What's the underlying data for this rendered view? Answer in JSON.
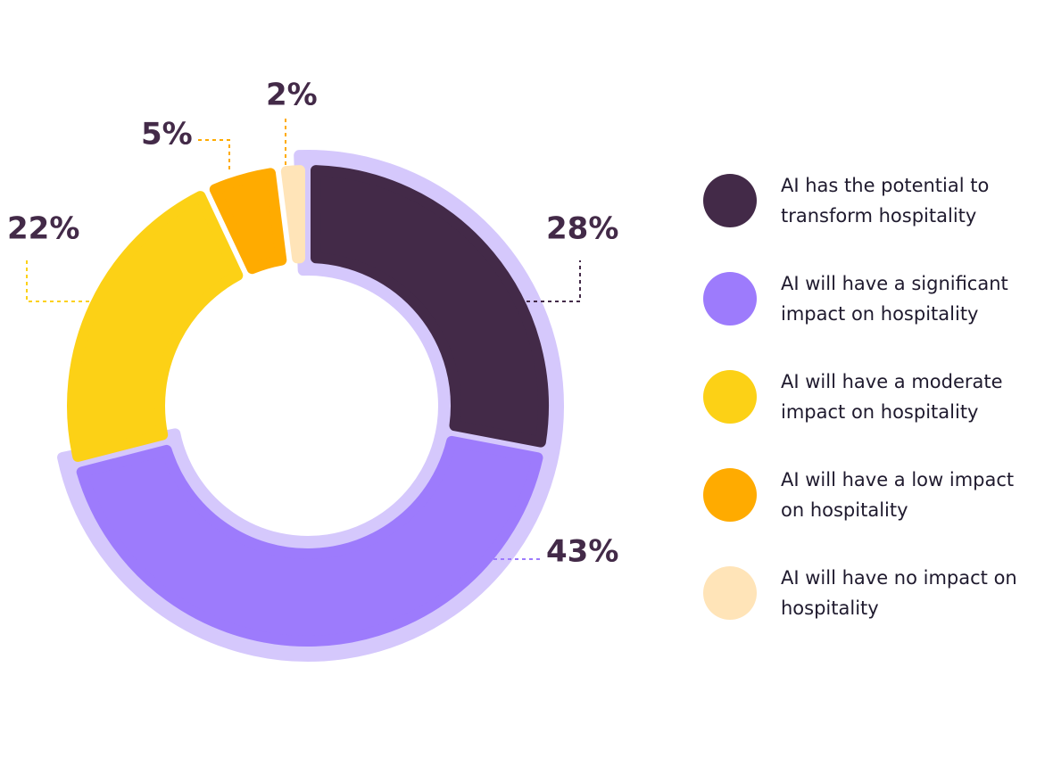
{
  "chart_data": {
    "type": "donut",
    "categories": [
      "AI has the potential to transform hospitality",
      "AI will have a significant impact on hospitality",
      "AI will have a moderate impact on hospitality",
      "AI will have a low impact on hospitality",
      "AI will have no impact on hospitality"
    ],
    "values": [
      28,
      43,
      22,
      5,
      2
    ],
    "value_labels": [
      "28%",
      "43%",
      "22%",
      "5%",
      "2%"
    ],
    "colors": [
      "#432a48",
      "#9d7bfc",
      "#fcd116",
      "#ffab00",
      "#ffe4b8"
    ]
  }
}
